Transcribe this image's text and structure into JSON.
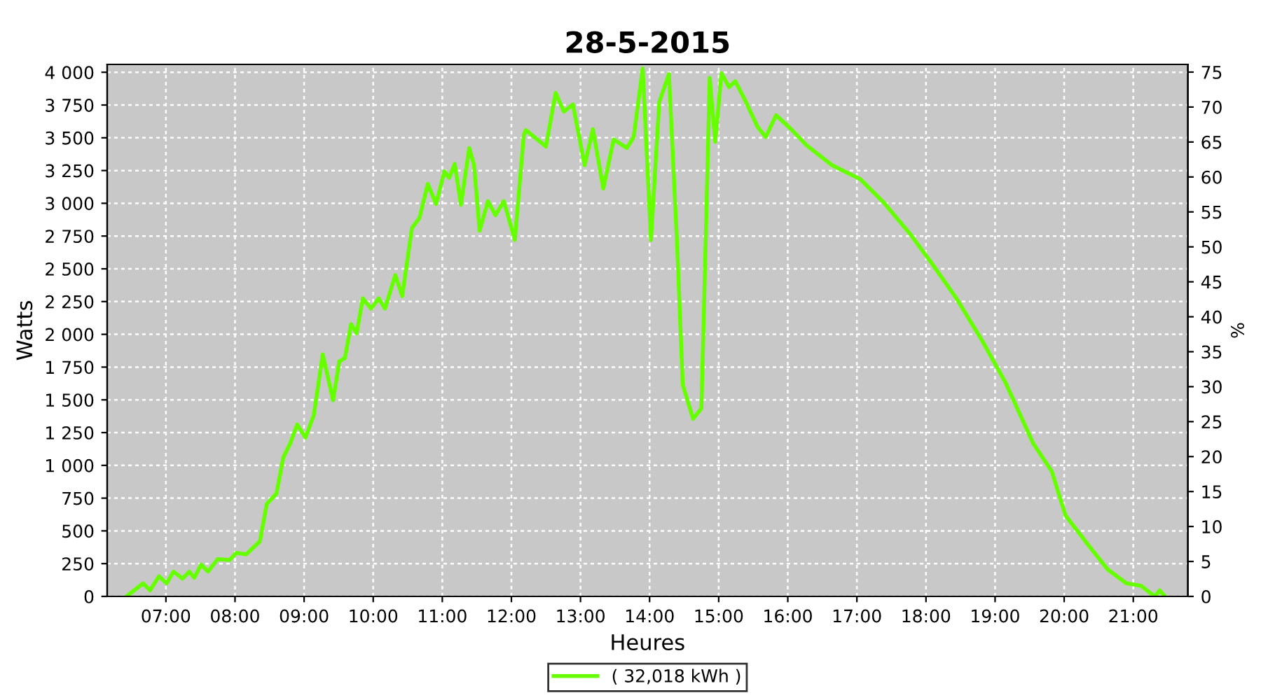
{
  "chart_data": {
    "type": "line",
    "title": "28-5-2015",
    "xlabel": "Heures",
    "ylabel": "Watts",
    "y2label": "%",
    "xlim": [
      6.15,
      21.79
    ],
    "xticks": [
      {
        "value": 7,
        "label": "07:00"
      },
      {
        "value": 8,
        "label": "08:00"
      },
      {
        "value": 9,
        "label": "09:00"
      },
      {
        "value": 10,
        "label": "10:00"
      },
      {
        "value": 11,
        "label": "11:00"
      },
      {
        "value": 12,
        "label": "12:00"
      },
      {
        "value": 13,
        "label": "13:00"
      },
      {
        "value": 14,
        "label": "14:00"
      },
      {
        "value": 15,
        "label": "15:00"
      },
      {
        "value": 16,
        "label": "16:00"
      },
      {
        "value": 17,
        "label": "17:00"
      },
      {
        "value": 18,
        "label": "18:00"
      },
      {
        "value": 19,
        "label": "19:00"
      },
      {
        "value": 20,
        "label": "20:00"
      },
      {
        "value": 21,
        "label": "21:00"
      }
    ],
    "ylim": [
      0,
      4060
    ],
    "yticks": [
      0,
      250,
      500,
      750,
      {
        "value": 1000,
        "label": "1 000"
      },
      {
        "value": 1250,
        "label": "1 250"
      },
      {
        "value": 1500,
        "label": "1 500"
      },
      {
        "value": 1750,
        "label": "1 750"
      },
      {
        "value": 2000,
        "label": "2 000"
      },
      {
        "value": 2250,
        "label": "2 250"
      },
      {
        "value": 2500,
        "label": "2 500"
      },
      {
        "value": 2750,
        "label": "2 750"
      },
      {
        "value": 3000,
        "label": "3 000"
      },
      {
        "value": 3250,
        "label": "3 250"
      },
      {
        "value": 3500,
        "label": "3 500"
      },
      {
        "value": 3750,
        "label": "3 750"
      },
      {
        "value": 4000,
        "label": "4 000"
      }
    ],
    "y2lim": [
      0,
      76.1
    ],
    "y2ticks": [
      0,
      5,
      10,
      15,
      20,
      25,
      30,
      35,
      40,
      45,
      50,
      55,
      60,
      65,
      70,
      75
    ],
    "grid": true,
    "legend": "bottom",
    "marker": "none",
    "line_style": "solid",
    "series": [
      {
        "name": "( 32,018 kWh )",
        "color": "#66ff00",
        "x": [
          6.43,
          6.67,
          6.77,
          6.9,
          7.01,
          7.11,
          7.24,
          7.34,
          7.41,
          7.51,
          7.61,
          7.75,
          7.92,
          8.02,
          8.16,
          8.36,
          8.46,
          8.6,
          8.7,
          8.8,
          8.9,
          9.02,
          9.14,
          9.27,
          9.42,
          9.51,
          9.59,
          9.68,
          9.76,
          9.85,
          9.97,
          10.08,
          10.17,
          10.32,
          10.42,
          10.56,
          10.67,
          10.79,
          10.91,
          11.03,
          11.1,
          11.18,
          11.27,
          11.39,
          11.46,
          11.54,
          11.66,
          11.77,
          11.89,
          12.05,
          12.18,
          12.21,
          12.5,
          12.64,
          12.76,
          12.89,
          13.06,
          13.18,
          13.33,
          13.48,
          13.67,
          13.77,
          13.9,
          14.02,
          14.14,
          14.28,
          14.4,
          14.48,
          14.63,
          14.75,
          14.82,
          14.87,
          14.95,
          15.04,
          15.15,
          15.24,
          15.37,
          15.56,
          15.68,
          15.83,
          16.05,
          16.27,
          16.64,
          17.05,
          17.39,
          17.76,
          18.06,
          18.44,
          18.81,
          19.15,
          19.55,
          19.82,
          20.02,
          20.36,
          20.63,
          20.9,
          21.11,
          21.31,
          21.38,
          21.46
        ],
        "values": [
          0,
          100,
          46,
          153,
          100,
          189,
          136,
          189,
          142,
          243,
          189,
          285,
          278,
          332,
          321,
          420,
          706,
          784,
          1062,
          1169,
          1312,
          1212,
          1383,
          1847,
          1497,
          1794,
          1818,
          2078,
          2007,
          2275,
          2196,
          2275,
          2196,
          2452,
          2292,
          2810,
          2888,
          3148,
          2995,
          3244,
          3194,
          3301,
          2988,
          3422,
          3291,
          2791,
          3016,
          2909,
          3016,
          2720,
          3522,
          3558,
          3433,
          3843,
          3700,
          3754,
          3291,
          3565,
          3112,
          3487,
          3422,
          3505,
          4029,
          2720,
          3772,
          3986,
          2666,
          1615,
          1355,
          1436,
          2880,
          3957,
          3469,
          3993,
          3886,
          3932,
          3800,
          3586,
          3505,
          3672,
          3565,
          3444,
          3291,
          3184,
          3005,
          2773,
          2559,
          2275,
          1954,
          1633,
          1169,
          955,
          617,
          385,
          206,
          100,
          82,
          0,
          46,
          0
        ]
      }
    ]
  }
}
